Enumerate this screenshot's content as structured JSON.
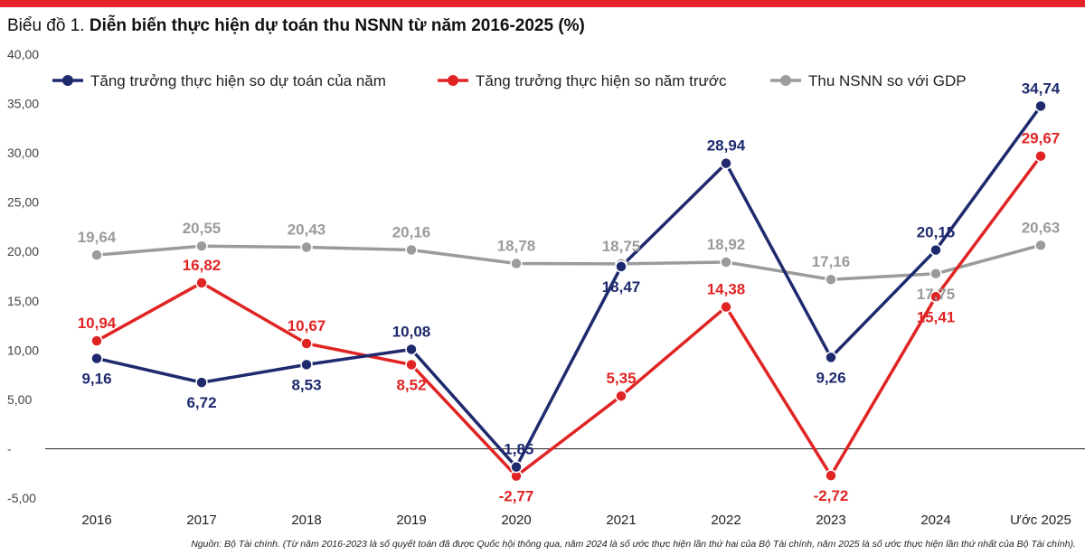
{
  "title_prefix": "Biểu đồ 1.",
  "title_main": "Diễn biến thực hiện dự toán thu NSNN từ năm 2016-2025 (%)",
  "source_note": "Nguồn: Bộ Tài chính. (Từ năm 2016-2023 là số quyết toán đã được Quốc hội thông qua, năm 2024 là số ước thực hiện lần thứ hai của Bộ Tài chính, năm 2025 là số ước thực hiện lần thứ nhất của Bộ Tài chính).",
  "colors": {
    "accent_bar": "#e8242b",
    "navy": "#1f2a6e",
    "red": "#e02424",
    "gray": "#9b9b9b",
    "axis": "#222222",
    "tick_text": "#444444"
  },
  "chart_data": {
    "type": "line",
    "title": "Biểu đồ 1. Diễn biến thực hiện dự toán thu NSNN từ năm 2016-2025 (%)",
    "categories": [
      "2016",
      "2017",
      "2018",
      "2019",
      "2020",
      "2021",
      "2022",
      "2023",
      "2024",
      "Ước 2025"
    ],
    "ylim": [
      -5,
      40
    ],
    "yticks": [
      -5,
      0,
      5,
      10,
      15,
      20,
      25,
      30,
      35,
      40
    ],
    "ytick_labels": [
      "-5,00",
      "-",
      "5,00",
      "10,00",
      "15,00",
      "20,00",
      "25,00",
      "30,00",
      "35,00",
      "40,00"
    ],
    "grid": false,
    "legend_position": "top",
    "series": [
      {
        "name": "Tăng trưởng thực hiện so dự toán của năm",
        "color": "#1f2a6e",
        "values": [
          9.16,
          6.72,
          8.53,
          10.08,
          -1.85,
          18.47,
          28.94,
          9.26,
          20.15,
          34.74
        ],
        "labels": [
          "9,16",
          "6,72",
          "8,53",
          "10,08",
          "-1,85",
          "18,47",
          "28,94",
          "9,26",
          "20,15",
          "34,74"
        ],
        "label_pos": [
          "below",
          "below",
          "below",
          "above",
          "above",
          "below",
          "above",
          "below",
          "above",
          "above"
        ]
      },
      {
        "name": "Tăng trưởng thực hiện so năm trước",
        "color": "#e02424",
        "values": [
          10.94,
          16.82,
          10.67,
          8.52,
          -2.77,
          5.35,
          14.38,
          -2.72,
          15.41,
          29.67
        ],
        "labels": [
          "10,94",
          "16,82",
          "10,67",
          "8,52",
          "-2,77",
          "5,35",
          "14,38",
          "-2,72",
          "15,41",
          "29,67"
        ],
        "label_pos": [
          "above",
          "above",
          "above",
          "below",
          "below",
          "above",
          "above",
          "below",
          "below",
          "above"
        ]
      },
      {
        "name": "Thu NSNN so với GDP",
        "color": "#9b9b9b",
        "values": [
          19.64,
          20.55,
          20.43,
          20.16,
          18.78,
          18.75,
          18.92,
          17.16,
          17.75,
          20.63
        ],
        "labels": [
          "19,64",
          "20,55",
          "20,43",
          "20,16",
          "18,78",
          "18,75",
          "18,92",
          "17,16",
          "17,75",
          "20,63"
        ],
        "label_pos": [
          "above",
          "above",
          "above",
          "above",
          "above",
          "above",
          "above",
          "above",
          "below",
          "above"
        ]
      }
    ]
  }
}
